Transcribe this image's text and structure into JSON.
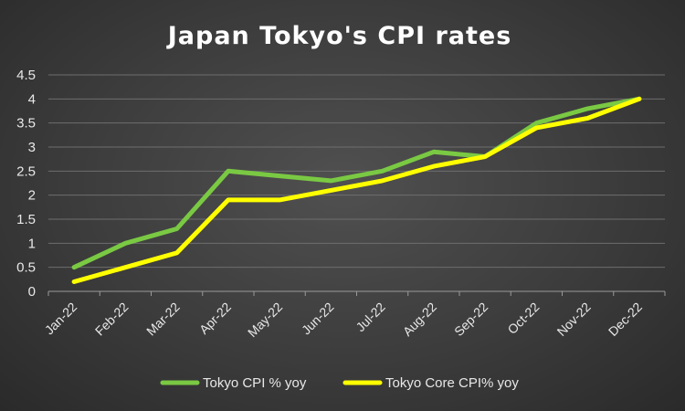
{
  "chart_data": {
    "type": "line",
    "title": "Japan Tokyo's CPI rates",
    "xlabel": "",
    "ylabel": "",
    "categories": [
      "Jan-22",
      "Feb-22",
      "Mar-22",
      "Apr-22",
      "May-22",
      "Jun-22",
      "Jul-22",
      "Aug-22",
      "Sep-22",
      "Oct-22",
      "Nov-22",
      "Dec-22"
    ],
    "ylim": [
      0,
      4.5
    ],
    "yticks": [
      "0",
      "0.5",
      "1",
      "1.5",
      "2",
      "2.5",
      "3",
      "3.5",
      "4",
      "4.5"
    ],
    "grid": true,
    "legend_position": "bottom",
    "series": [
      {
        "name": "Tokyo CPI % yoy",
        "color": "#7ac943",
        "values": [
          0.5,
          1.0,
          1.3,
          2.5,
          2.4,
          2.3,
          2.5,
          2.9,
          2.8,
          3.5,
          3.8,
          4.0
        ]
      },
      {
        "name": "Tokyo Core CPI% yoy",
        "color": "#ffff00",
        "values": [
          0.2,
          0.5,
          0.8,
          1.9,
          1.9,
          2.1,
          2.3,
          2.6,
          2.8,
          3.4,
          3.6,
          4.0
        ]
      }
    ]
  }
}
